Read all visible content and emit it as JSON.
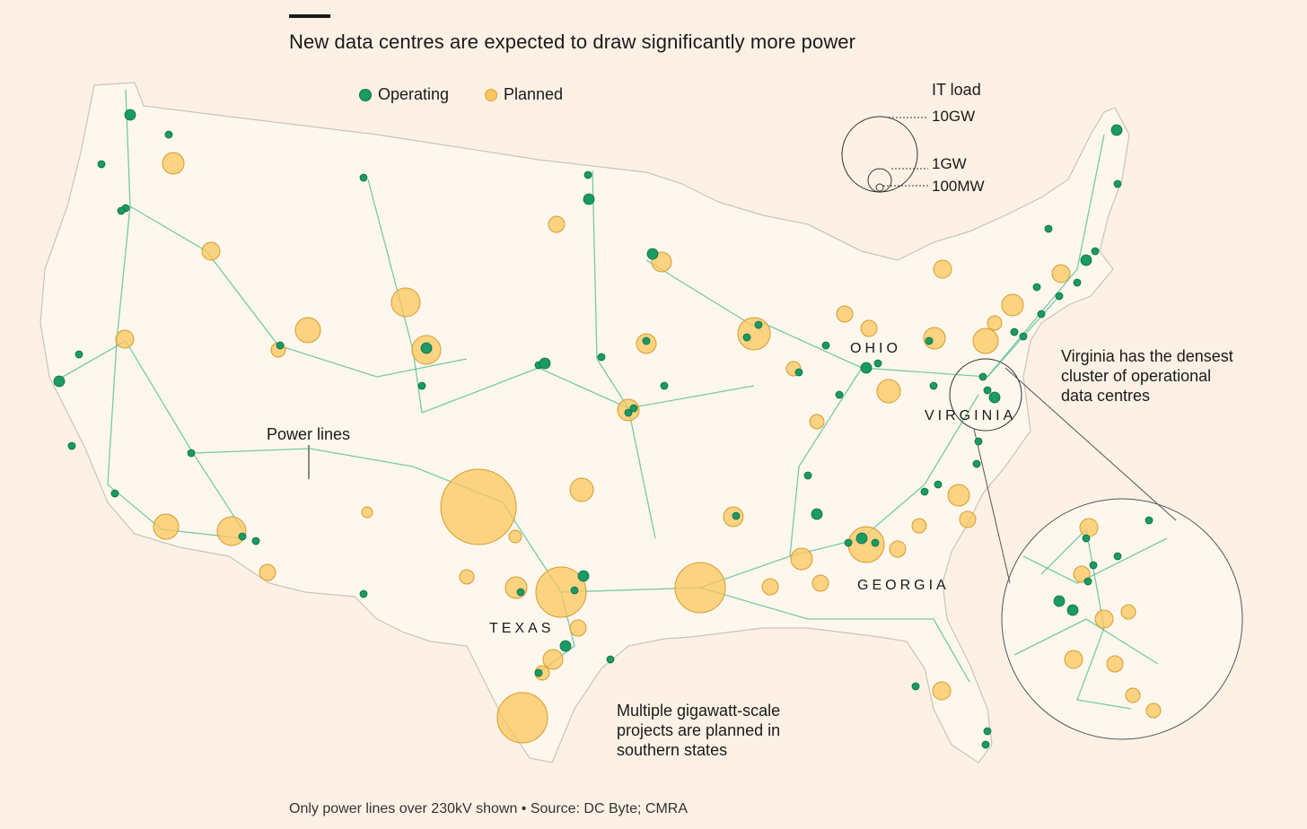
{
  "title": "New data centres are expected to draw significantly more power",
  "legend": {
    "operating": "Operating",
    "planned": "Planned",
    "operating_color": "#1a9a64",
    "planned_color": "#fbc75c"
  },
  "size_legend": {
    "title": "IT load",
    "labels": [
      "10GW",
      "1GW",
      "100MW"
    ]
  },
  "annotations": {
    "power_lines": "Power lines",
    "virginia": [
      "Virginia has the densest",
      "cluster of operational",
      "data centres"
    ],
    "south": [
      "Multiple gigawatt-scale",
      "projects are planned in",
      "southern states"
    ]
  },
  "states": {
    "ohio": "OHIO",
    "virginia": "VIRGINIA",
    "texas": "TEXAS",
    "georgia": "GEORGIA"
  },
  "source": "Only power lines over 230kV shown • Source: DC Byte; CMRA"
}
